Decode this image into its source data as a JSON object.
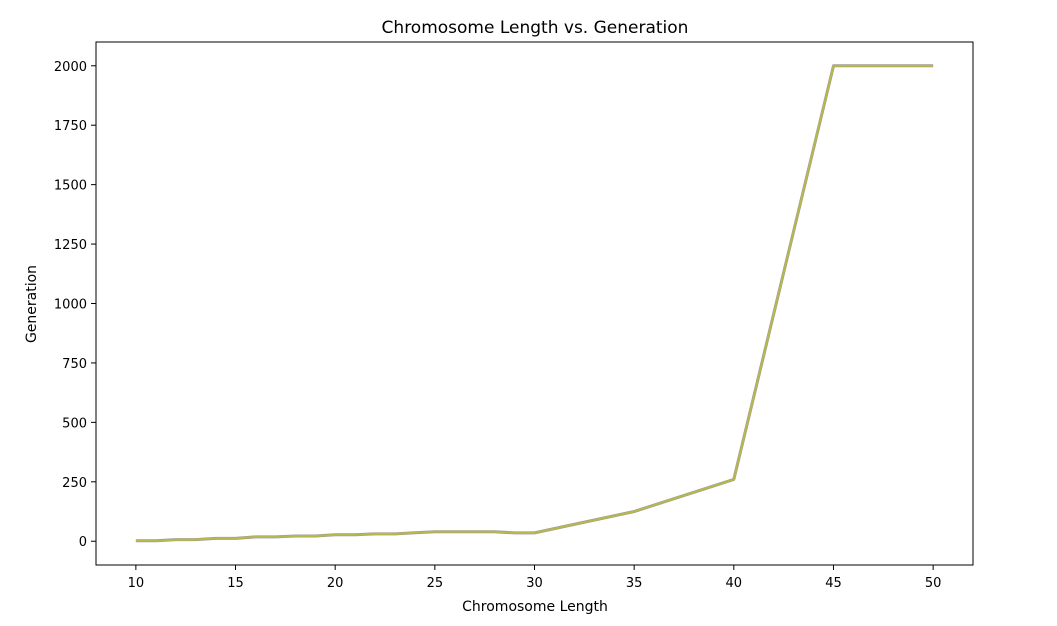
{
  "chart_data": {
    "type": "line",
    "title": "Chromosome Length vs. Generation",
    "xlabel": "Chromosome Length",
    "ylabel": "Generation",
    "xlim": [
      8,
      52
    ],
    "ylim": [
      -100,
      2100
    ],
    "x_ticks": [
      10,
      15,
      20,
      25,
      30,
      35,
      40,
      45,
      50
    ],
    "y_ticks": [
      0,
      250,
      500,
      750,
      1000,
      1250,
      1500,
      1750,
      2000
    ],
    "grid": false,
    "colors": {
      "line": "#b5b84a",
      "line_shadow": "#9a8fb0"
    },
    "series": [
      {
        "x": [
          10,
          11,
          12,
          13,
          14,
          15,
          16,
          17,
          18,
          19,
          20,
          21,
          22,
          23,
          24,
          25,
          26,
          27,
          28,
          29,
          30,
          35,
          40,
          45,
          50
        ],
        "values": [
          2,
          2,
          7,
          7,
          12,
          12,
          18,
          18,
          22,
          22,
          27,
          27,
          31,
          31,
          36,
          40,
          40,
          40,
          40,
          35,
          35,
          125,
          260,
          2000,
          2000
        ]
      }
    ]
  }
}
